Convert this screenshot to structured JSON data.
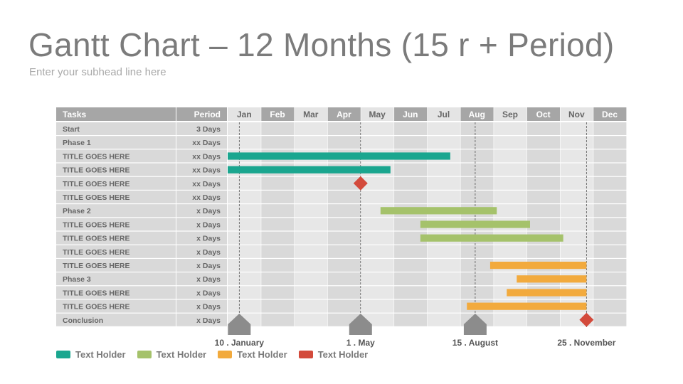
{
  "header": {
    "title": "Gantt Chart – 12 Months (15 r + Period)",
    "subtitle": "Enter your subhead line here"
  },
  "colors": {
    "header_dark": "#a6a6a6",
    "header_light": "#e4e4e4",
    "header_text_dark": "#ffffff",
    "header_text_light": "#666666",
    "cell_light": "#e7e7e7",
    "cell_dark": "#d9d9d9",
    "text": "#666666",
    "phase1": "#1aa68f",
    "phase2": "#a5c26b",
    "phase3": "#f2aa3d",
    "milestone": "#d34a3b",
    "marker": "#8c8c8c"
  },
  "chart_data": {
    "type": "gantt",
    "columns": {
      "tasks": "Tasks",
      "period": "Period"
    },
    "months": [
      "Jan",
      "Feb",
      "Mar",
      "Apr",
      "May",
      "Jun",
      "Jul",
      "Aug",
      "Sep",
      "Oct",
      "Nov",
      "Dec"
    ],
    "x_range_months": [
      0,
      12
    ],
    "rows": [
      {
        "task": "Start",
        "period": "3 Days",
        "bars": [],
        "milestones": []
      },
      {
        "task": "Phase 1",
        "period": "xx Days",
        "bars": [],
        "milestones": []
      },
      {
        "task": "TITLE GOES HERE",
        "period": "xx Days",
        "bars": [
          {
            "start": 0.0,
            "end": 6.7,
            "group": "phase1"
          }
        ],
        "milestones": []
      },
      {
        "task": "TITLE GOES HERE",
        "period": "xx Days",
        "bars": [
          {
            "start": 0.0,
            "end": 4.9,
            "group": "phase1"
          }
        ],
        "milestones": []
      },
      {
        "task": "TITLE GOES HERE",
        "period": "xx Days",
        "bars": [],
        "milestones": [
          {
            "at": 4.0
          }
        ]
      },
      {
        "task": "TITLE GOES HERE",
        "period": "xx Days",
        "bars": [],
        "milestones": []
      },
      {
        "task": "Phase 2",
        "period": "x Days",
        "bars": [
          {
            "start": 4.6,
            "end": 8.1,
            "group": "phase2"
          }
        ],
        "milestones": []
      },
      {
        "task": "TITLE GOES HERE",
        "period": "x Days",
        "bars": [
          {
            "start": 5.8,
            "end": 9.1,
            "group": "phase2"
          }
        ],
        "milestones": []
      },
      {
        "task": "TITLE GOES HERE",
        "period": "x Days",
        "bars": [
          {
            "start": 5.8,
            "end": 10.1,
            "group": "phase2"
          }
        ],
        "milestones": []
      },
      {
        "task": "TITLE GOES HERE",
        "period": "x Days",
        "bars": [],
        "milestones": []
      },
      {
        "task": "TITLE GOES HERE",
        "period": "x Days",
        "bars": [
          {
            "start": 7.9,
            "end": 10.8,
            "group": "phase3"
          }
        ],
        "milestones": []
      },
      {
        "task": "Phase 3",
        "period": "x Days",
        "bars": [
          {
            "start": 8.7,
            "end": 10.8,
            "group": "phase3"
          }
        ],
        "milestones": []
      },
      {
        "task": "TITLE GOES HERE",
        "period": "x Days",
        "bars": [
          {
            "start": 8.4,
            "end": 10.8,
            "group": "phase3"
          }
        ],
        "milestones": []
      },
      {
        "task": "TITLE GOES HERE",
        "period": "x Days",
        "bars": [
          {
            "start": 7.2,
            "end": 10.8,
            "group": "phase3"
          }
        ],
        "milestones": []
      },
      {
        "task": "Conclusion",
        "period": "x Days",
        "bars": [],
        "milestones": [
          {
            "at": 10.8
          }
        ]
      }
    ],
    "key_dates": [
      {
        "label": "10 . January",
        "at": 0.35,
        "marker": true
      },
      {
        "label": "1 . May",
        "at": 4.0,
        "marker": true
      },
      {
        "label": "15 . August",
        "at": 7.45,
        "marker": true
      },
      {
        "label": "25 . November",
        "at": 10.8,
        "marker": false
      }
    ],
    "legend": [
      {
        "label": "Text Holder",
        "color": "#1aa68f"
      },
      {
        "label": "Text Holder",
        "color": "#a5c26b"
      },
      {
        "label": "Text Holder",
        "color": "#f2aa3d"
      },
      {
        "label": "Text Holder",
        "color": "#d34a3b"
      }
    ]
  }
}
